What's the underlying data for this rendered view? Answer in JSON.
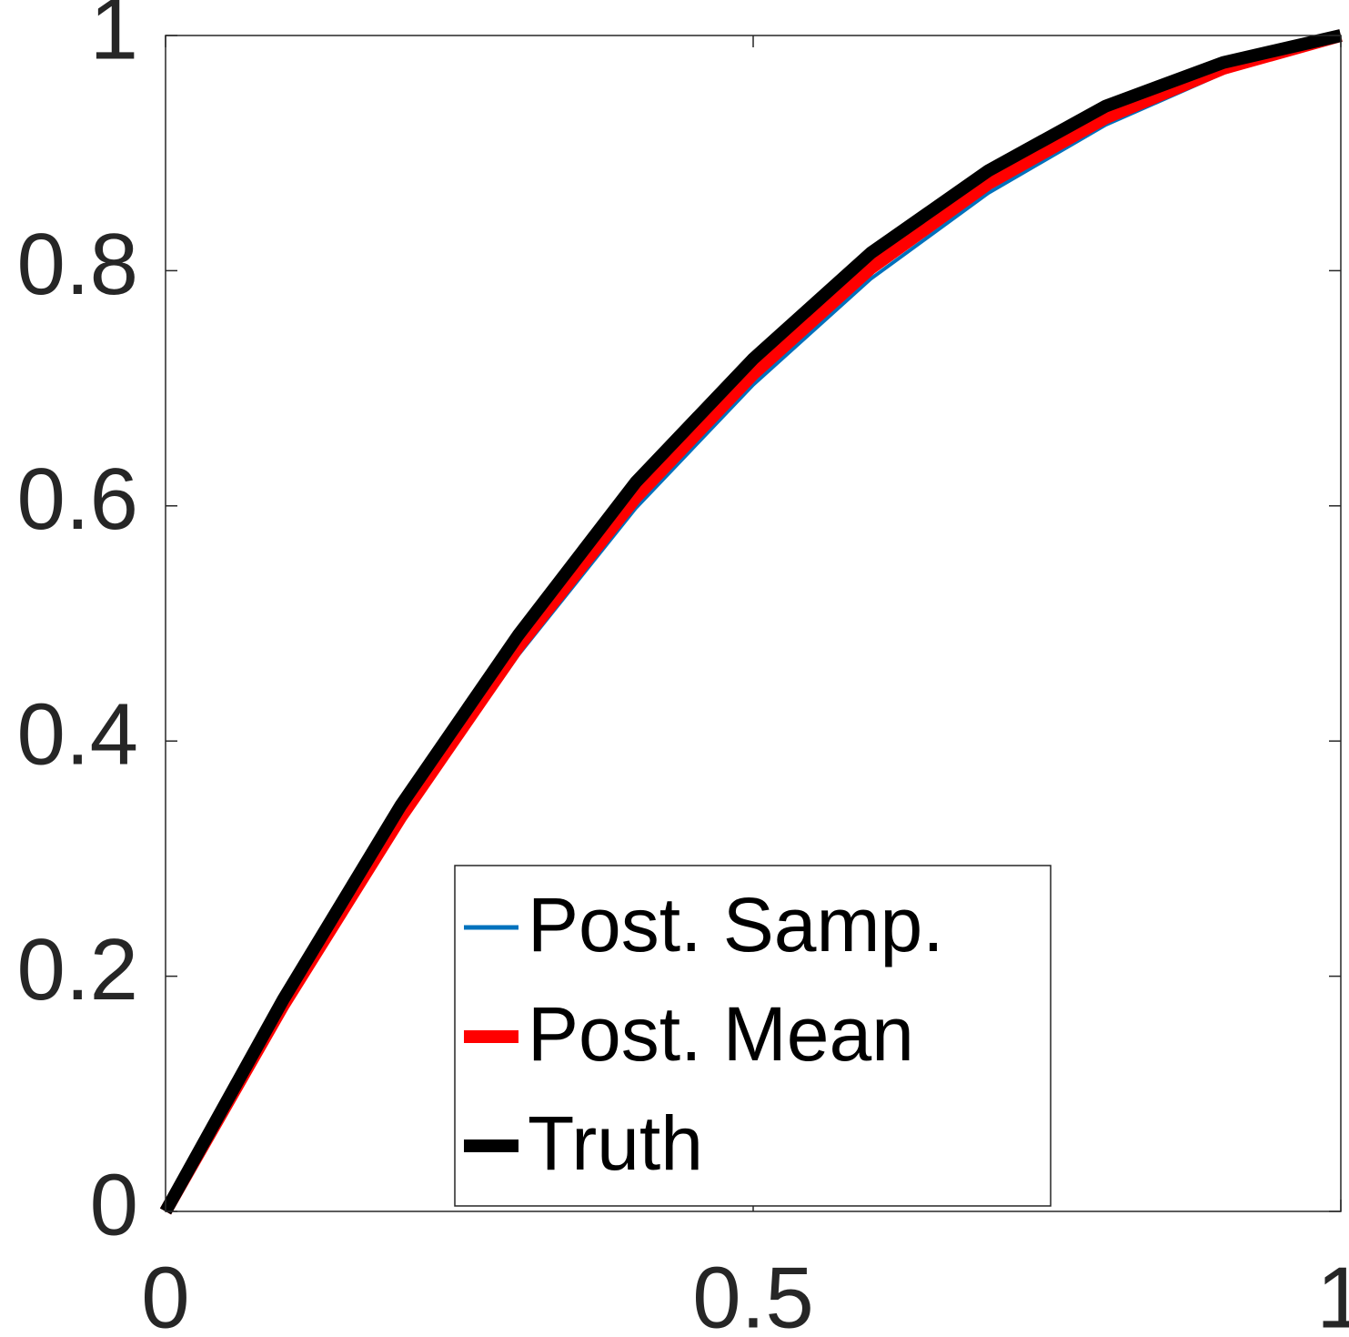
{
  "chart_data": {
    "type": "line",
    "x": [
      0,
      0.1,
      0.2,
      0.3,
      0.4,
      0.5,
      0.6,
      0.7,
      0.8,
      0.9,
      1
    ],
    "series": [
      {
        "name": "Post. Samp.",
        "color": "#0072bd",
        "values": [
          0,
          0.172,
          0.33,
          0.473,
          0.598,
          0.703,
          0.793,
          0.866,
          0.924,
          0.968,
          1.0
        ]
      },
      {
        "name": "Post. Mean",
        "color": "#ff0000",
        "values": [
          0,
          0.175,
          0.335,
          0.48,
          0.607,
          0.712,
          0.802,
          0.874,
          0.93,
          0.972,
          1.0
        ]
      },
      {
        "name": "Truth",
        "color": "#000000",
        "values": [
          0,
          0.18,
          0.345,
          0.49,
          0.62,
          0.725,
          0.815,
          0.885,
          0.94,
          0.977,
          1.0
        ]
      }
    ],
    "xlim": [
      0,
      1
    ],
    "ylim": [
      0,
      1
    ],
    "xticks": [
      0,
      0.5,
      1
    ],
    "yticks": [
      0,
      0.2,
      0.4,
      0.6,
      0.8,
      1
    ],
    "legend": "lower-right"
  }
}
